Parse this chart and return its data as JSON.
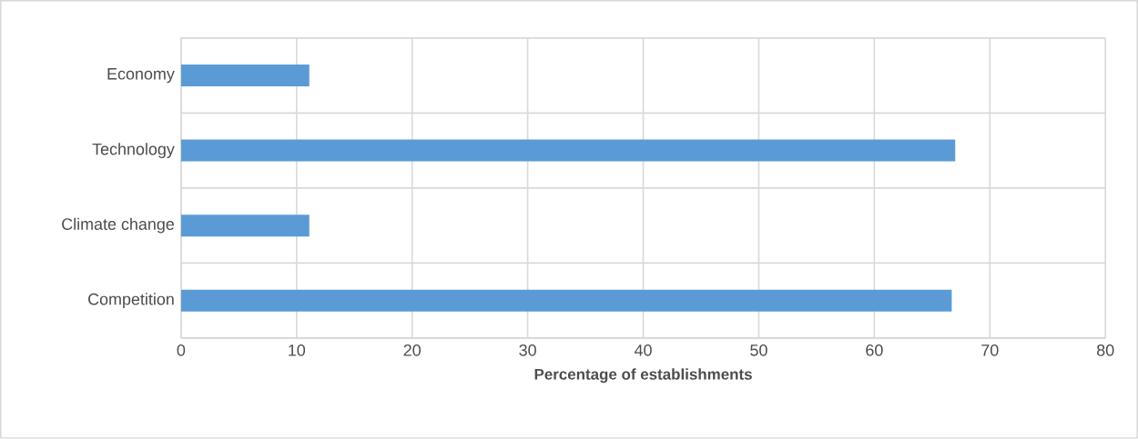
{
  "chart_data": {
    "type": "bar",
    "orientation": "horizontal",
    "categories": [
      "Economy",
      "Technology",
      "Climate change",
      "Competition"
    ],
    "values": [
      11.1,
      67,
      11.1,
      66.7
    ],
    "color": "#5b9bd5",
    "xlabel": "Percentage of establishments",
    "xlim": [
      0,
      80
    ],
    "xticks": [
      0,
      10,
      20,
      30,
      40,
      50,
      60,
      70,
      80
    ],
    "grid": true
  }
}
